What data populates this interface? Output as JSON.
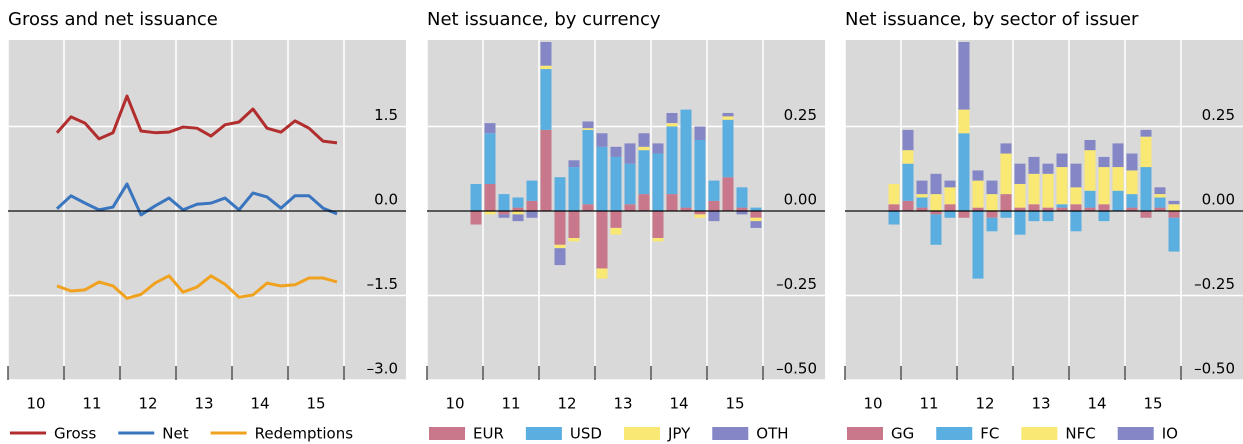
{
  "chart_data": [
    {
      "type": "line",
      "title": "Gross and net issuance",
      "x": [
        10.875,
        11.125,
        11.375,
        11.625,
        11.875,
        12.125,
        12.375,
        12.625,
        12.875,
        13.125,
        13.375,
        13.625,
        13.875,
        14.125,
        14.375,
        14.625,
        14.875,
        15.125,
        15.375,
        15.625,
        15.875
      ],
      "series": [
        {
          "name": "Gross",
          "color": "#b22d2d",
          "values": [
            1.39,
            1.67,
            1.56,
            1.28,
            1.39,
            2.04,
            1.42,
            1.39,
            1.4,
            1.49,
            1.47,
            1.33,
            1.53,
            1.58,
            1.81,
            1.47,
            1.4,
            1.6,
            1.47,
            1.24,
            1.21
          ]
        },
        {
          "name": "Net",
          "color": "#3a75bf",
          "values": [
            0.04,
            0.27,
            0.14,
            0.02,
            0.07,
            0.48,
            -0.07,
            0.09,
            0.23,
            0.02,
            0.12,
            0.14,
            0.23,
            0.02,
            0.32,
            0.25,
            0.05,
            0.27,
            0.27,
            0.05,
            -0.05
          ]
        },
        {
          "name": "Redemptions",
          "color": "#f0a21f",
          "values": [
            -1.33,
            -1.42,
            -1.4,
            -1.26,
            -1.33,
            -1.55,
            -1.48,
            -1.28,
            -1.15,
            -1.44,
            -1.35,
            -1.15,
            -1.3,
            -1.53,
            -1.49,
            -1.28,
            -1.33,
            -1.31,
            -1.19,
            -1.19,
            -1.26
          ]
        }
      ],
      "xlim": [
        10,
        16
      ],
      "ylim": [
        -3,
        3
      ],
      "xticks": [
        {
          "value": 10.5,
          "label": "10"
        },
        {
          "value": 11.5,
          "label": "11"
        },
        {
          "value": 12.5,
          "label": "12"
        },
        {
          "value": 13.5,
          "label": "13"
        },
        {
          "value": 14.5,
          "label": "14"
        },
        {
          "value": 15.5,
          "label": "15"
        }
      ],
      "yticks": [
        1.5,
        {
          "value": 0,
          "label": "0.0"
        },
        {
          "value": -1.5,
          "label": "–1.5"
        },
        {
          "value": -3,
          "label": "–3.0"
        }
      ],
      "grid": true
    },
    {
      "type": "bar",
      "title": "Net issuance, by currency",
      "x": [
        10.875,
        11.125,
        11.375,
        11.625,
        11.875,
        12.125,
        12.375,
        12.625,
        12.875,
        13.125,
        13.375,
        13.625,
        13.875,
        14.125,
        14.375,
        14.625,
        14.875,
        15.125,
        15.375,
        15.625,
        15.875
      ],
      "series": [
        {
          "name": "EUR",
          "color": "#c8788a",
          "values": [
            -0.04,
            0.08,
            -0.01,
            0.01,
            0.03,
            0.24,
            -0.1,
            -0.08,
            0.02,
            -0.17,
            -0.05,
            0.02,
            0.05,
            -0.08,
            0.05,
            0.01,
            -0.01,
            0.03,
            0.1,
            0.01,
            -0.02
          ]
        },
        {
          "name": "USD",
          "color": "#5aaee0",
          "values": [
            0.08,
            0.15,
            0.05,
            0.03,
            0.06,
            0.18,
            0.1,
            0.13,
            0.22,
            0.19,
            0.16,
            0.12,
            0.13,
            0.17,
            0.2,
            0.29,
            0.21,
            0.06,
            0.17,
            0.06,
            0.01
          ]
        },
        {
          "name": "JPY",
          "color": "#f9e873",
          "values": [
            0,
            -0.01,
            0,
            -0.01,
            0,
            0.01,
            -0.01,
            -0.01,
            0.005,
            -0.03,
            -0.02,
            0,
            0.01,
            -0.01,
            0.01,
            0,
            -0.01,
            0,
            0.01,
            0,
            -0.01
          ]
        },
        {
          "name": "OTH",
          "color": "#8486c6",
          "values": [
            0,
            0.03,
            -0.01,
            -0.02,
            -0.02,
            0.07,
            -0.05,
            0.02,
            0.02,
            0.04,
            0.03,
            0.06,
            0.04,
            0.03,
            0.03,
            0,
            0.04,
            -0.03,
            0.01,
            -0.01,
            -0.02
          ]
        }
      ],
      "xlim": [
        10,
        16
      ],
      "ylim": [
        -0.5,
        0.5
      ],
      "xticks": [
        {
          "value": 10.5,
          "label": "10"
        },
        {
          "value": 11.5,
          "label": "11"
        },
        {
          "value": 12.5,
          "label": "12"
        },
        {
          "value": 13.5,
          "label": "13"
        },
        {
          "value": 14.5,
          "label": "14"
        },
        {
          "value": 15.5,
          "label": "15"
        }
      ],
      "yticks": [
        0.25,
        {
          "value": 0,
          "label": "0.00"
        },
        {
          "value": -0.25,
          "label": "–0.25"
        },
        {
          "value": -0.5,
          "label": "–0.50"
        }
      ],
      "grid": true
    },
    {
      "type": "bar",
      "title": "Net issuance, by sector of issuer",
      "x": [
        10.875,
        11.125,
        11.375,
        11.625,
        11.875,
        12.125,
        12.375,
        12.625,
        12.875,
        13.125,
        13.375,
        13.625,
        13.875,
        14.125,
        14.375,
        14.625,
        14.875,
        15.125,
        15.375,
        15.625,
        15.875
      ],
      "series": [
        {
          "name": "GG",
          "color": "#c8788a",
          "values": [
            0.02,
            0.03,
            0.01,
            -0.01,
            0.02,
            -0.02,
            0.01,
            -0.02,
            0.05,
            0.01,
            0.02,
            0.01,
            0.01,
            0.02,
            0.01,
            0.02,
            0,
            0.01,
            -0.02,
            0.01,
            -0.02
          ]
        },
        {
          "name": "FC",
          "color": "#5aaee0",
          "values": [
            -0.04,
            0.11,
            0.03,
            -0.09,
            -0.02,
            0.23,
            -0.2,
            -0.04,
            -0.02,
            -0.07,
            -0.03,
            -0.03,
            0.01,
            -0.06,
            0.05,
            -0.03,
            0.06,
            0.04,
            0.13,
            0.03,
            -0.1
          ]
        },
        {
          "name": "NFC",
          "color": "#f9e873",
          "values": [
            0.06,
            0.04,
            0.01,
            0.05,
            0.05,
            0.07,
            0.08,
            0.05,
            0.12,
            0.07,
            0.09,
            0.1,
            0.11,
            0.05,
            0.12,
            0.11,
            0.07,
            0.07,
            0.09,
            0.01,
            0.02
          ]
        },
        {
          "name": "IO",
          "color": "#8486c6",
          "values": [
            0,
            0.06,
            0.04,
            0.06,
            0.02,
            0.2,
            0.03,
            0.04,
            0.03,
            0.06,
            0.05,
            0.03,
            0.04,
            0.07,
            0.03,
            0.03,
            0.07,
            0.05,
            0.02,
            0.02,
            0.01
          ]
        }
      ],
      "xlim": [
        10,
        16
      ],
      "ylim": [
        -0.5,
        0.5
      ],
      "xticks": [
        {
          "value": 10.5,
          "label": "10"
        },
        {
          "value": 11.5,
          "label": "11"
        },
        {
          "value": 12.5,
          "label": "12"
        },
        {
          "value": 13.5,
          "label": "13"
        },
        {
          "value": 14.5,
          "label": "14"
        },
        {
          "value": 15.5,
          "label": "15"
        }
      ],
      "yticks": [
        0.25,
        {
          "value": 0,
          "label": "0.00"
        },
        {
          "value": -0.25,
          "label": "–0.25"
        },
        {
          "value": -0.5,
          "label": "–0.50"
        }
      ],
      "grid": true
    }
  ]
}
